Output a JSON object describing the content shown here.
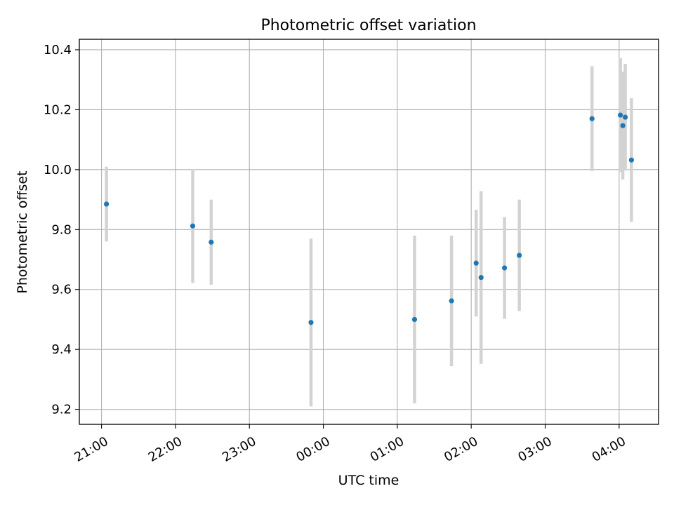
{
  "chart_data": {
    "type": "scatter",
    "title": "Photometric offset variation",
    "xlabel": "UTC time",
    "ylabel": "Photometric offset",
    "x_unit": "UTC time (HH:MM)",
    "xlim": [
      "20:42",
      "04:32"
    ],
    "ylim": [
      9.15,
      10.435
    ],
    "x_ticks": [
      "21:00",
      "22:00",
      "23:00",
      "00:00",
      "01:00",
      "02:00",
      "03:00",
      "04:00"
    ],
    "y_ticks": [
      9.2,
      9.4,
      9.6,
      9.8,
      10.0,
      10.2,
      10.4
    ],
    "y_tick_labels": [
      "9.2",
      "9.4",
      "9.6",
      "9.8",
      "10.0",
      "10.2",
      "10.4"
    ],
    "grid": true,
    "series": [
      {
        "color": "#1f77b4",
        "errorbar_color": "#d3d3d3",
        "points": [
          {
            "x": "21:04",
            "y": 9.885,
            "yerr": 0.125
          },
          {
            "x": "22:14",
            "y": 9.812,
            "yerr": 0.19
          },
          {
            "x": "22:29",
            "y": 9.758,
            "yerr": 0.142
          },
          {
            "x": "23:50",
            "y": 9.49,
            "yerr": 0.28
          },
          {
            "x": "01:14",
            "y": 9.5,
            "yerr": 0.28
          },
          {
            "x": "01:44",
            "y": 9.562,
            "yerr": 0.218
          },
          {
            "x": "02:04",
            "y": 9.688,
            "yerr": 0.178
          },
          {
            "x": "02:08",
            "y": 9.64,
            "yerr": 0.288
          },
          {
            "x": "02:27",
            "y": 9.672,
            "yerr": 0.17
          },
          {
            "x": "02:39",
            "y": 9.714,
            "yerr": 0.186
          },
          {
            "x": "03:38",
            "y": 10.17,
            "yerr": 0.175
          },
          {
            "x": "04:01",
            "y": 10.182,
            "yerr": 0.19
          },
          {
            "x": "04:03",
            "y": 10.147,
            "yerr": 0.18
          },
          {
            "x": "04:05",
            "y": 10.175,
            "yerr": 0.178
          },
          {
            "x": "04:10",
            "y": 10.032,
            "yerr": 0.206
          }
        ]
      }
    ]
  }
}
